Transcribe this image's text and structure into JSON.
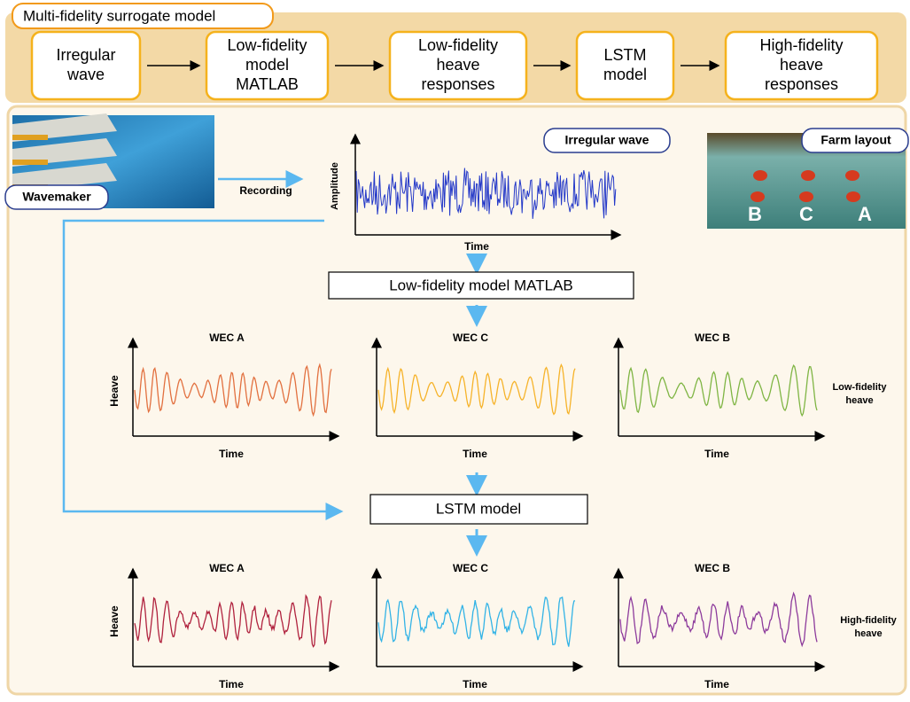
{
  "header": {
    "title": "Multi-fidelity surrogate model",
    "steps": [
      [
        "Irregular",
        "wave"
      ],
      [
        "Low-fidelity",
        "model",
        "MATLAB"
      ],
      [
        "Low-fidelity",
        "heave",
        "responses"
      ],
      [
        "LSTM",
        "model"
      ],
      [
        "High-fidelity",
        "heave",
        "responses"
      ]
    ]
  },
  "inputs": {
    "wavemaker": "Wavemaker",
    "recording": "Recording",
    "irregular_wave": {
      "label": "Irregular wave",
      "y_label": "Amplitude",
      "x_label": "Time"
    },
    "farm": {
      "label": "Farm layout",
      "markers": [
        "B",
        "C",
        "A"
      ]
    }
  },
  "process": {
    "low_fidelity_model": "Low-fidelity model MATLAB",
    "lstm": "LSTM model"
  },
  "low_fidelity": {
    "label": [
      "Low-fidelity",
      "heave"
    ],
    "plots": [
      {
        "title": "WEC A",
        "x_label": "Time",
        "y_label": "Heave"
      },
      {
        "title": "WEC C",
        "x_label": "Time"
      },
      {
        "title": "WEC B",
        "x_label": "Time"
      }
    ]
  },
  "high_fidelity": {
    "label": [
      "High-fidelity",
      "heave"
    ],
    "plots": [
      {
        "title": "WEC A",
        "x_label": "Time",
        "y_label": "Heave"
      },
      {
        "title": "WEC C",
        "x_label": "Time"
      },
      {
        "title": "WEC B",
        "x_label": "Time"
      }
    ]
  }
}
